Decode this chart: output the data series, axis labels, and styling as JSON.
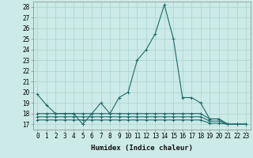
{
  "title": "",
  "xlabel": "Humidex (Indice chaleur)",
  "ylabel": "",
  "background_color": "#cceae7",
  "grid_color": "#aad4d0",
  "line_color": "#1a6b6b",
  "xlim": [
    -0.5,
    23.5
  ],
  "ylim": [
    16.5,
    28.5
  ],
  "yticks": [
    17,
    18,
    19,
    20,
    21,
    22,
    23,
    24,
    25,
    26,
    27,
    28
  ],
  "xticks": [
    0,
    1,
    2,
    3,
    4,
    5,
    6,
    7,
    8,
    9,
    10,
    11,
    12,
    13,
    14,
    15,
    16,
    17,
    18,
    19,
    20,
    21,
    22,
    23
  ],
  "series": [
    [
      19.8,
      18.8,
      18.0,
      18.0,
      18.0,
      17.0,
      18.0,
      19.0,
      18.0,
      19.5,
      20.0,
      23.0,
      24.0,
      25.5,
      28.2,
      25.0,
      19.5,
      19.5,
      19.0,
      17.5,
      17.5,
      17.0,
      17.0,
      17.0
    ],
    [
      18.0,
      18.0,
      18.0,
      18.0,
      18.0,
      18.0,
      18.0,
      18.0,
      18.0,
      18.0,
      18.0,
      18.0,
      18.0,
      18.0,
      18.0,
      18.0,
      18.0,
      18.0,
      18.0,
      17.5,
      17.5,
      17.0,
      17.0,
      17.0
    ],
    [
      17.7,
      17.7,
      17.7,
      17.7,
      17.7,
      17.7,
      17.7,
      17.7,
      17.7,
      17.7,
      17.7,
      17.7,
      17.7,
      17.7,
      17.7,
      17.7,
      17.7,
      17.7,
      17.7,
      17.3,
      17.3,
      17.0,
      17.0,
      17.0
    ],
    [
      17.4,
      17.4,
      17.4,
      17.4,
      17.4,
      17.4,
      17.4,
      17.4,
      17.4,
      17.4,
      17.4,
      17.4,
      17.4,
      17.4,
      17.4,
      17.4,
      17.4,
      17.4,
      17.4,
      17.1,
      17.1,
      17.0,
      17.0,
      17.0
    ]
  ],
  "fontsize_ticks": 5.5,
  "fontsize_label": 6.5,
  "marker": "+",
  "markersize": 2.5,
  "linewidth": 0.8
}
